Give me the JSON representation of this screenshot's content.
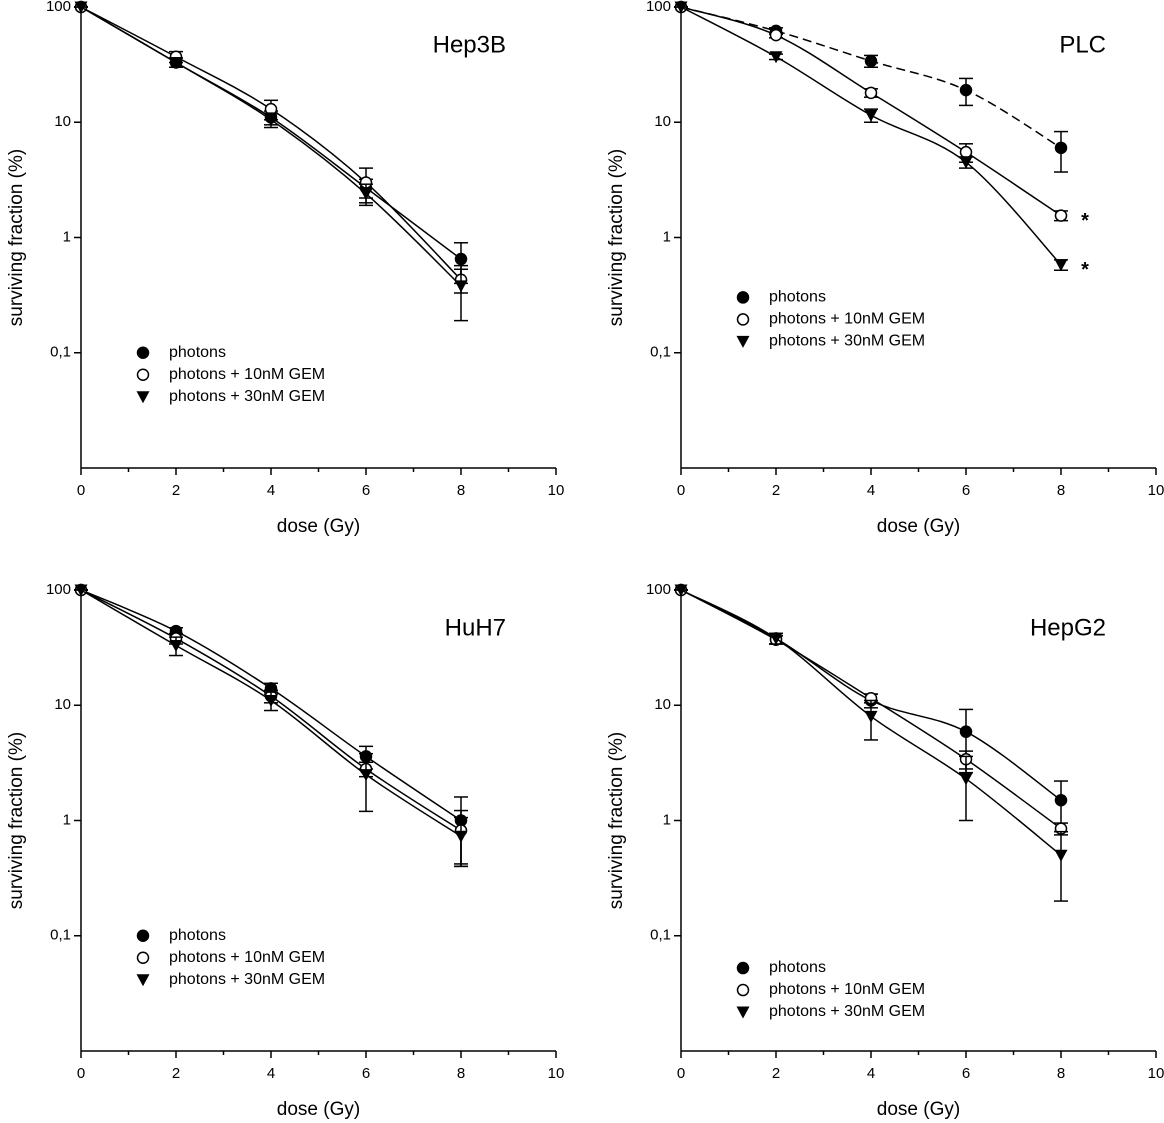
{
  "chart_data": [
    {
      "type": "scatter",
      "title": "Hep3B",
      "xlabel": "dose (Gy)",
      "ylabel": "surviving fraction (%)",
      "x": [
        0,
        2,
        4,
        6,
        8
      ],
      "xlim": [
        0,
        10
      ],
      "xticks": [
        0,
        2,
        4,
        6,
        8,
        10
      ],
      "xminorticks": [
        1,
        3,
        5,
        7,
        9
      ],
      "ylim": [
        0.01,
        100
      ],
      "log_y": true,
      "yticks": [
        {
          "value": 0.1,
          "label": "0,1"
        },
        1,
        10,
        100
      ],
      "legend": "lower left",
      "series": [
        {
          "name": "photons",
          "color": "#000000",
          "marker": "circle",
          "line": "solid",
          "values": [
            100,
            33,
            11,
            2.7,
            0.65
          ],
          "errors": [
            0,
            3,
            1.5,
            0.5,
            0.25
          ]
        },
        {
          "name": "photons + 10nM GEM",
          "color": "#000000",
          "marker": "circle-open",
          "line": "solid",
          "values": [
            100,
            37,
            13,
            3,
            0.43
          ],
          "errors": [
            0,
            4,
            2.5,
            1,
            0.1
          ]
        },
        {
          "name": "photons + 30nM GEM",
          "color": "#000000",
          "marker": "triangle-down",
          "line": "solid",
          "values": [
            100,
            33,
            10.5,
            2.4,
            0.38
          ],
          "errors": [
            0,
            3,
            1.5,
            0.5,
            0.19
          ]
        }
      ]
    },
    {
      "type": "scatter",
      "title": "PLC",
      "xlabel": "dose (Gy)",
      "ylabel": "surviving fraction (%)",
      "x": [
        0,
        2,
        4,
        6,
        8
      ],
      "xlim": [
        0,
        10
      ],
      "xticks": [
        0,
        2,
        4,
        6,
        8,
        10
      ],
      "xminorticks": [
        1,
        3,
        5,
        7,
        9
      ],
      "ylim": [
        0.01,
        100
      ],
      "log_y": true,
      "yticks": [
        {
          "value": 0.1,
          "label": "0,1"
        },
        1,
        10,
        100
      ],
      "legend": "center left",
      "series": [
        {
          "name": "photons",
          "color": "#000000",
          "marker": "circle",
          "line": "dashed",
          "values": [
            100,
            62,
            34,
            19,
            6
          ],
          "errors": [
            0,
            4,
            4,
            5,
            2.3
          ]
        },
        {
          "name": "photons + 10nM GEM",
          "color": "#000000",
          "marker": "circle-open",
          "line": "solid",
          "values": [
            100,
            57,
            18,
            5.5,
            1.55
          ],
          "errors": [
            0,
            3,
            1.5,
            1,
            0.15
          ],
          "note": "*"
        },
        {
          "name": "photons + 30nM GEM",
          "color": "#000000",
          "marker": "triangle-down",
          "line": "solid",
          "values": [
            100,
            37,
            11.5,
            4.5,
            0.58
          ],
          "errors": [
            0,
            2,
            1.5,
            0.5,
            0.06
          ],
          "note": "*"
        }
      ]
    },
    {
      "type": "scatter",
      "title": "HuH7",
      "xlabel": "dose (Gy)",
      "ylabel": "surviving fraction (%)",
      "x": [
        0,
        2,
        4,
        6,
        8
      ],
      "xlim": [
        0,
        10
      ],
      "xticks": [
        0,
        2,
        4,
        6,
        8,
        10
      ],
      "xminorticks": [
        1,
        3,
        5,
        7,
        9
      ],
      "ylim": [
        0.01,
        100
      ],
      "log_y": true,
      "yticks": [
        {
          "value": 0.1,
          "label": "0,1"
        },
        1,
        10,
        100
      ],
      "legend": "lower left",
      "series": [
        {
          "name": "photons",
          "color": "#000000",
          "marker": "circle",
          "line": "solid",
          "values": [
            100,
            44,
            14,
            3.6,
            1.0
          ],
          "errors": [
            0,
            3,
            1.5,
            0.8,
            0.6
          ]
        },
        {
          "name": "photons + 10nM GEM",
          "color": "#000000",
          "marker": "circle-open",
          "line": "solid",
          "values": [
            100,
            38,
            12,
            2.8,
            0.82
          ],
          "errors": [
            0,
            4,
            1.5,
            0.4,
            0.4
          ]
        },
        {
          "name": "photons + 30nM GEM",
          "color": "#000000",
          "marker": "triangle-down",
          "line": "solid",
          "values": [
            100,
            33,
            11,
            2.5,
            0.73
          ],
          "errors": [
            0,
            6,
            2,
            1.3,
            0.33
          ]
        }
      ]
    },
    {
      "type": "scatter",
      "title": "HepG2",
      "xlabel": "dose (Gy)",
      "ylabel": "surviving fraction (%)",
      "x": [
        0,
        2,
        4,
        6,
        8
      ],
      "xlim": [
        0,
        10
      ],
      "xticks": [
        0,
        2,
        4,
        6,
        8,
        10
      ],
      "xminorticks": [
        1,
        3,
        5,
        7,
        9
      ],
      "ylim": [
        0.01,
        100
      ],
      "log_y": true,
      "yticks": [
        {
          "value": 0.1,
          "label": "0,1"
        },
        1,
        10,
        100
      ],
      "legend": "bottom left",
      "series": [
        {
          "name": "photons",
          "color": "#000000",
          "marker": "circle",
          "line": "solid",
          "values": [
            100,
            38,
            11,
            5.9,
            1.5
          ],
          "errors": [
            0,
            4,
            1.5,
            3.3,
            0.7
          ]
        },
        {
          "name": "photons + 10nM GEM",
          "color": "#000000",
          "marker": "circle-open",
          "line": "solid",
          "values": [
            100,
            37,
            11.5,
            3.4,
            0.85
          ],
          "errors": [
            0,
            3,
            1,
            0.6,
            0.1
          ]
        },
        {
          "name": "photons + 30nM GEM",
          "color": "#000000",
          "marker": "triangle-down",
          "line": "solid",
          "values": [
            100,
            38,
            8,
            2.3,
            0.5
          ],
          "errors": [
            0,
            4,
            3,
            1.3,
            0.3
          ]
        }
      ]
    }
  ]
}
